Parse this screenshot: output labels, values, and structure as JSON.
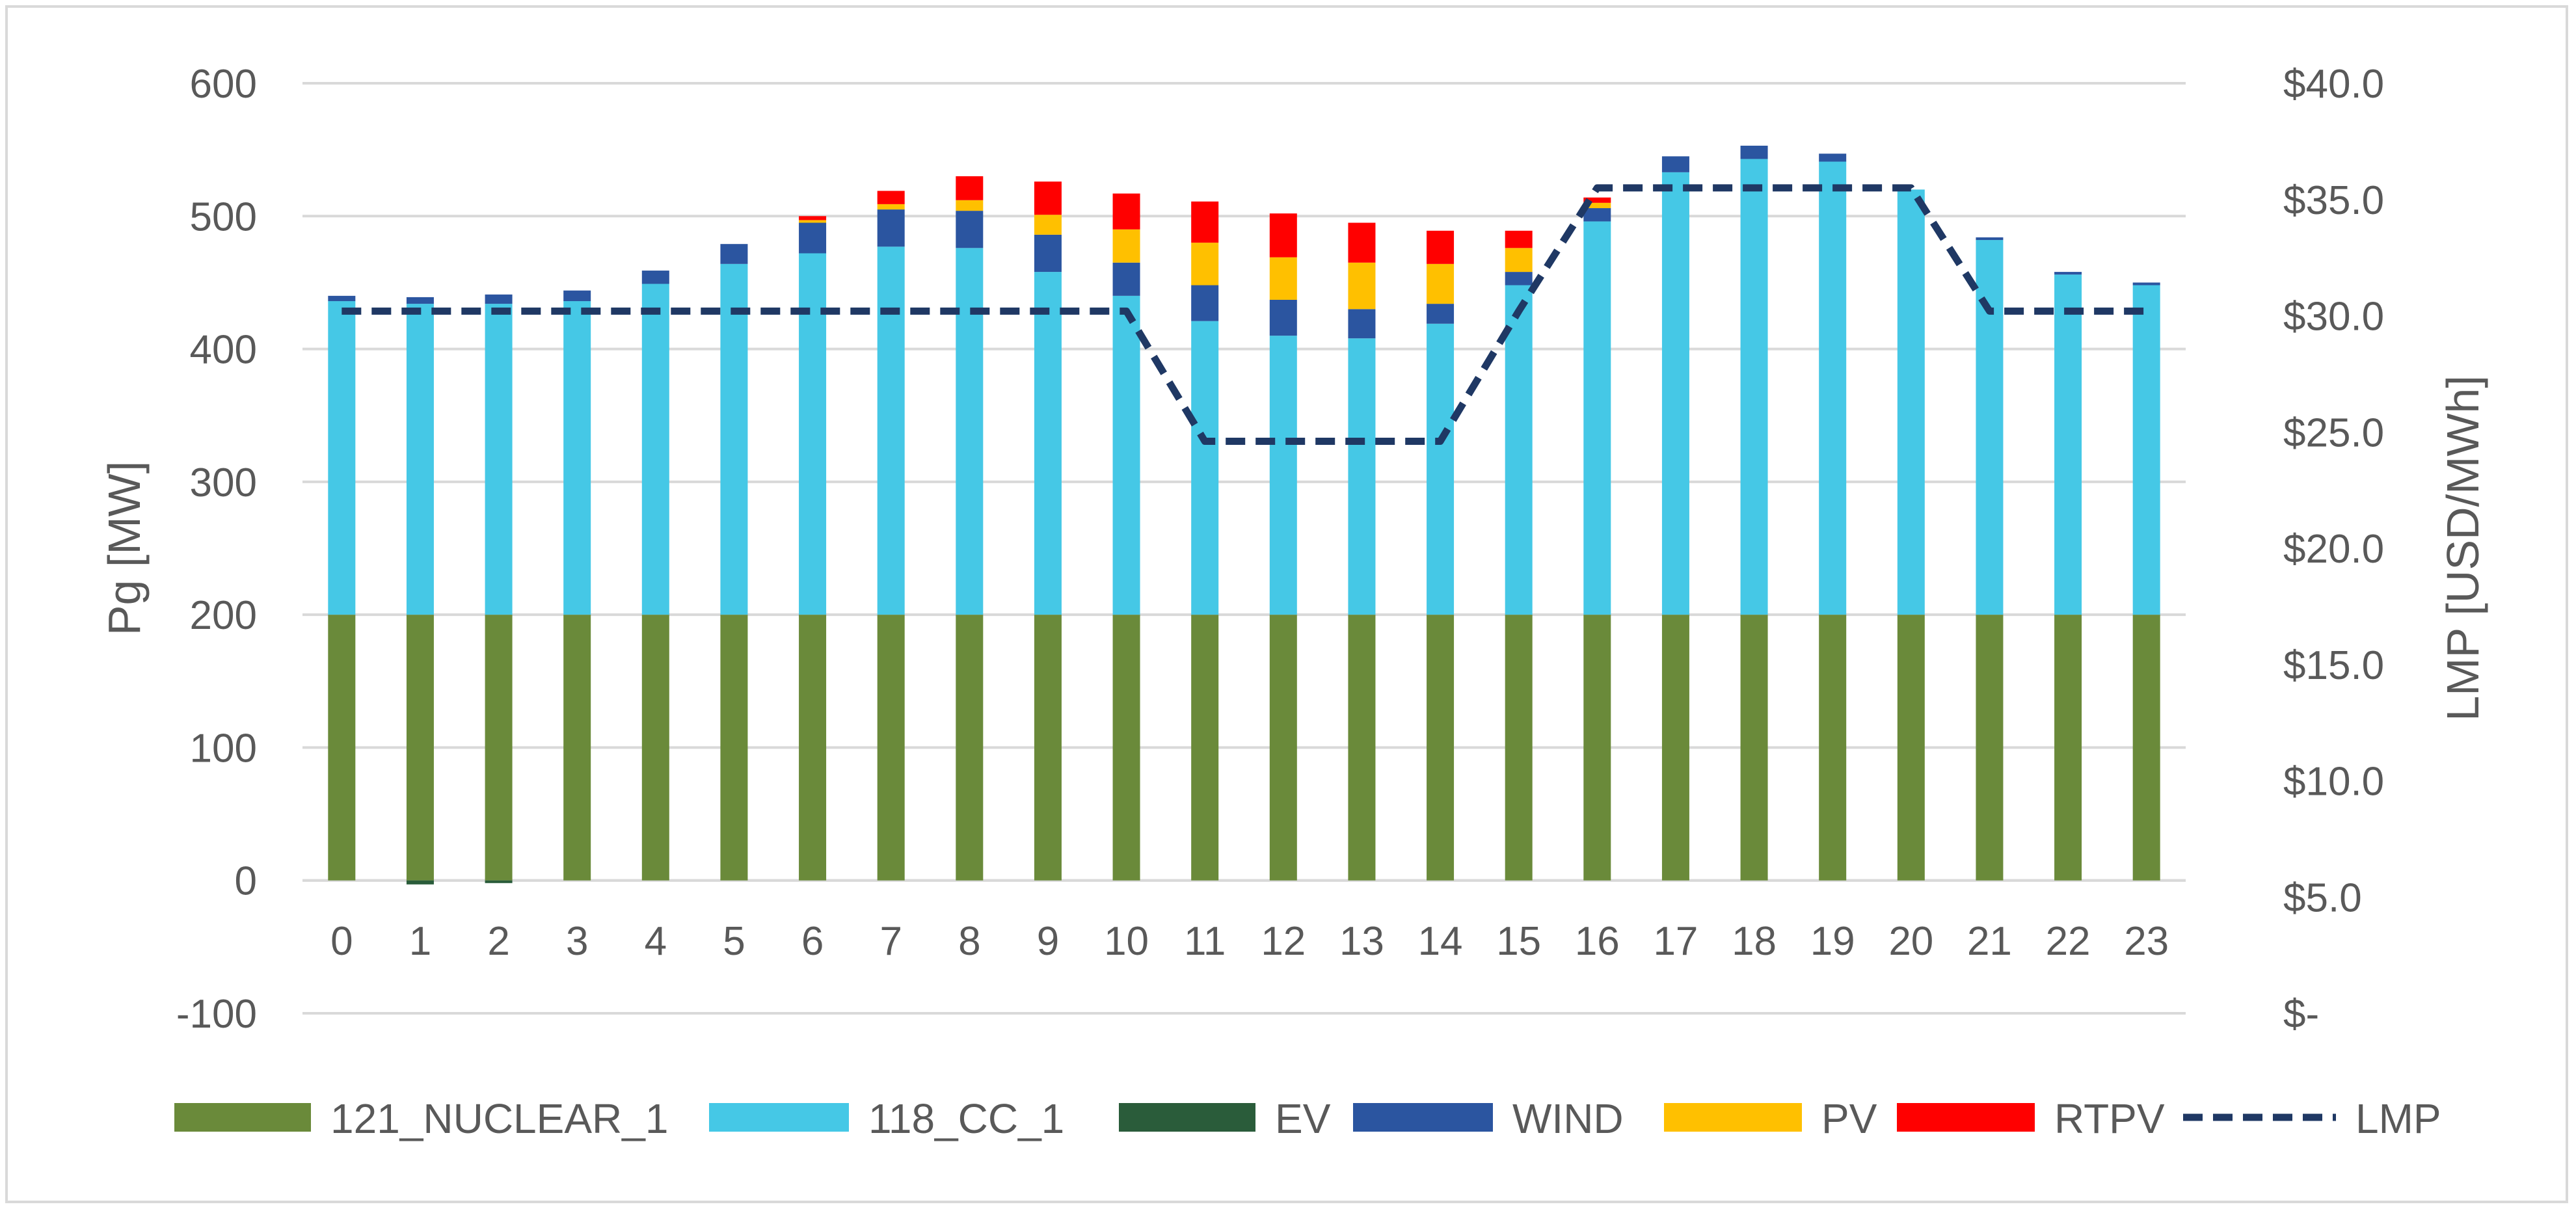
{
  "chart_data": {
    "type": "bar",
    "stacked": true,
    "title": "",
    "xlabel": "",
    "ylabel": "Pg [MW]",
    "y2label": "LMP [USD/MWh]",
    "ylim": [
      -100,
      600
    ],
    "y2lim": [
      0,
      40
    ],
    "yticks": [
      "600",
      "500",
      "400",
      "300",
      "200",
      "100",
      "0",
      "-100"
    ],
    "yticks_values": [
      600,
      500,
      400,
      300,
      200,
      100,
      0,
      -100
    ],
    "y2ticks": [
      "$40.0",
      "$35.0",
      "$30.0",
      "$25.0",
      "$20.0",
      "$15.0",
      "$10.0",
      "$5.0",
      "$-"
    ],
    "y2ticks_values": [
      40,
      35,
      30,
      25,
      20,
      15,
      10,
      5,
      0
    ],
    "categories": [
      "0",
      "1",
      "2",
      "3",
      "4",
      "5",
      "6",
      "7",
      "8",
      "9",
      "10",
      "11",
      "12",
      "13",
      "14",
      "15",
      "16",
      "17",
      "18",
      "19",
      "20",
      "21",
      "22",
      "23"
    ],
    "legend_position": "bottom",
    "series": [
      {
        "name": "121_NUCLEAR_1",
        "color": "#6a8a3a",
        "values": [
          200,
          200,
          200,
          200,
          200,
          200,
          200,
          200,
          200,
          200,
          200,
          200,
          200,
          200,
          200,
          200,
          200,
          200,
          200,
          200,
          200,
          200,
          200,
          200
        ]
      },
      {
        "name": "118_CC_1",
        "color": "#45c8e6",
        "values": [
          236,
          234,
          234,
          236,
          249,
          264,
          272,
          277,
          276,
          258,
          240,
          221,
          210,
          208,
          219,
          248,
          296,
          333,
          343,
          341,
          320,
          282,
          256,
          248
        ]
      },
      {
        "name": "EV",
        "color": "#2a5c3a",
        "values": [
          0,
          -3,
          -2,
          0,
          0,
          0,
          0,
          0,
          0,
          0,
          0,
          0,
          0,
          0,
          0,
          0,
          0,
          0,
          0,
          0,
          0,
          0,
          0,
          0
        ]
      },
      {
        "name": "WIND",
        "color": "#2b55a0",
        "values": [
          4,
          5,
          7,
          8,
          10,
          15,
          23,
          28,
          28,
          28,
          25,
          27,
          27,
          22,
          15,
          10,
          10,
          12,
          10,
          6,
          0,
          2,
          2,
          2
        ]
      },
      {
        "name": "PV",
        "color": "#ffc000",
        "values": [
          0,
          0,
          0,
          0,
          0,
          0,
          2,
          4,
          8,
          15,
          25,
          32,
          32,
          35,
          30,
          18,
          4,
          0,
          0,
          0,
          0,
          0,
          0,
          0
        ]
      },
      {
        "name": "RTPV",
        "color": "#ff0000",
        "values": [
          0,
          0,
          0,
          0,
          0,
          0,
          3,
          10,
          18,
          25,
          27,
          31,
          33,
          30,
          25,
          13,
          4,
          0,
          0,
          0,
          0,
          0,
          0,
          0
        ]
      },
      {
        "name": "LMP",
        "type": "line",
        "axis": "secondary",
        "color": "#1f3864",
        "dash": "dashed",
        "values": [
          30.2,
          30.2,
          30.2,
          30.2,
          30.2,
          30.2,
          30.2,
          30.2,
          30.2,
          30.2,
          30.2,
          24.6,
          24.6,
          24.6,
          24.6,
          30.2,
          35.5,
          35.5,
          35.5,
          35.5,
          35.5,
          30.2,
          30.2,
          30.2
        ]
      }
    ]
  }
}
